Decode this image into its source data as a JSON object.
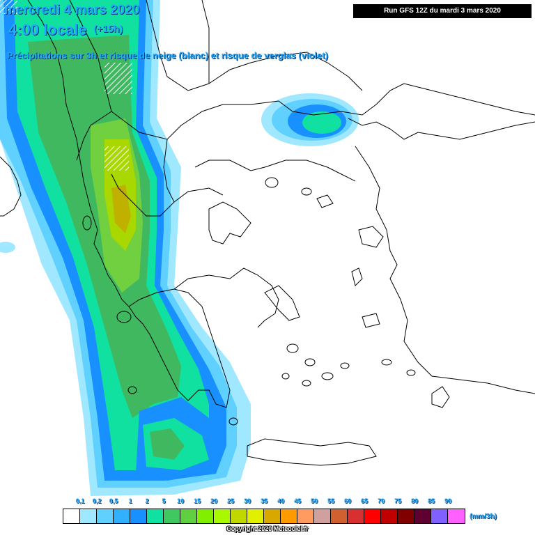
{
  "header": {
    "date": "mercredi 4 mars 2020",
    "time": "4:00 locale",
    "lead": "(+15h)",
    "subtitle": "Précipitations sur 3h et risque de neige (blanc) et risque de verglas (violet)",
    "run": "Run GFS 12Z du mardi 3 mars 2020"
  },
  "legend": {
    "ticks": [
      "0,1",
      "0,2",
      "0,5",
      "1",
      "2",
      "5",
      "10",
      "15",
      "20",
      "25",
      "30",
      "35",
      "40",
      "45",
      "50",
      "55",
      "60",
      "65",
      "70",
      "75",
      "80",
      "85",
      "90"
    ],
    "unit": "(mm/3h)",
    "colors": [
      "#ffffff",
      "#a0e8ff",
      "#60d0ff",
      "#30b0ff",
      "#1890ff",
      "#10e0a0",
      "#40c860",
      "#60d040",
      "#80f000",
      "#a8f800",
      "#c0d800",
      "#e0f000",
      "#d8a800",
      "#ff9a00",
      "#ff9a60",
      "#d0a0a0",
      "#d06030",
      "#d83030",
      "#ff0000",
      "#c00000",
      "#800000",
      "#600030",
      "#8060ff",
      "#ff60ff"
    ]
  },
  "copyright": "Copyright 2020 Meteociel.fr",
  "map_colors": {
    "land_outline": "#000000",
    "pale_blue": "#a0e8ff",
    "light_blue": "#60d0ff",
    "blue": "#1890ff",
    "teal": "#10e0a0",
    "green": "#40b860",
    "light_green": "#70d040",
    "yellow_green": "#a8d800",
    "olive": "#c0b000"
  }
}
